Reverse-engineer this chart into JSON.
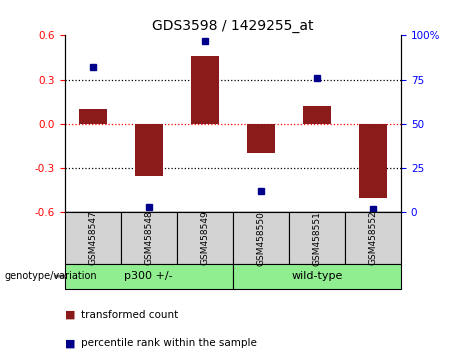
{
  "title": "GDS3598 / 1429255_at",
  "samples": [
    "GSM458547",
    "GSM458548",
    "GSM458549",
    "GSM458550",
    "GSM458551",
    "GSM458552"
  ],
  "red_bars": [
    0.1,
    -0.355,
    0.46,
    -0.2,
    0.12,
    -0.5
  ],
  "blue_dots_percentile": [
    82,
    3,
    97,
    12,
    76,
    2
  ],
  "ylim_left": [
    -0.6,
    0.6
  ],
  "ylim_right": [
    0,
    100
  ],
  "yticks_left": [
    -0.6,
    -0.3,
    0.0,
    0.3,
    0.6
  ],
  "yticks_right": [
    0,
    25,
    50,
    75,
    100
  ],
  "ytick_labels_right": [
    "0",
    "25",
    "50",
    "75",
    "100%"
  ],
  "hline_black": [
    -0.3,
    0.3
  ],
  "bar_color": "#8B1A1A",
  "dot_color": "#00008B",
  "background_color": "#ffffff",
  "plot_bg": "#ffffff",
  "group_label_left": "genotype/variation",
  "group1_label": "p300 +/-",
  "group2_label": "wild-type",
  "group_color": "#90EE90",
  "sample_box_color": "#D3D3D3",
  "legend_red_label": "transformed count",
  "legend_blue_label": "percentile rank within the sample",
  "title_fontsize": 10,
  "tick_fontsize": 7.5,
  "sample_fontsize": 6.5,
  "group_fontsize": 8,
  "legend_fontsize": 7.5
}
